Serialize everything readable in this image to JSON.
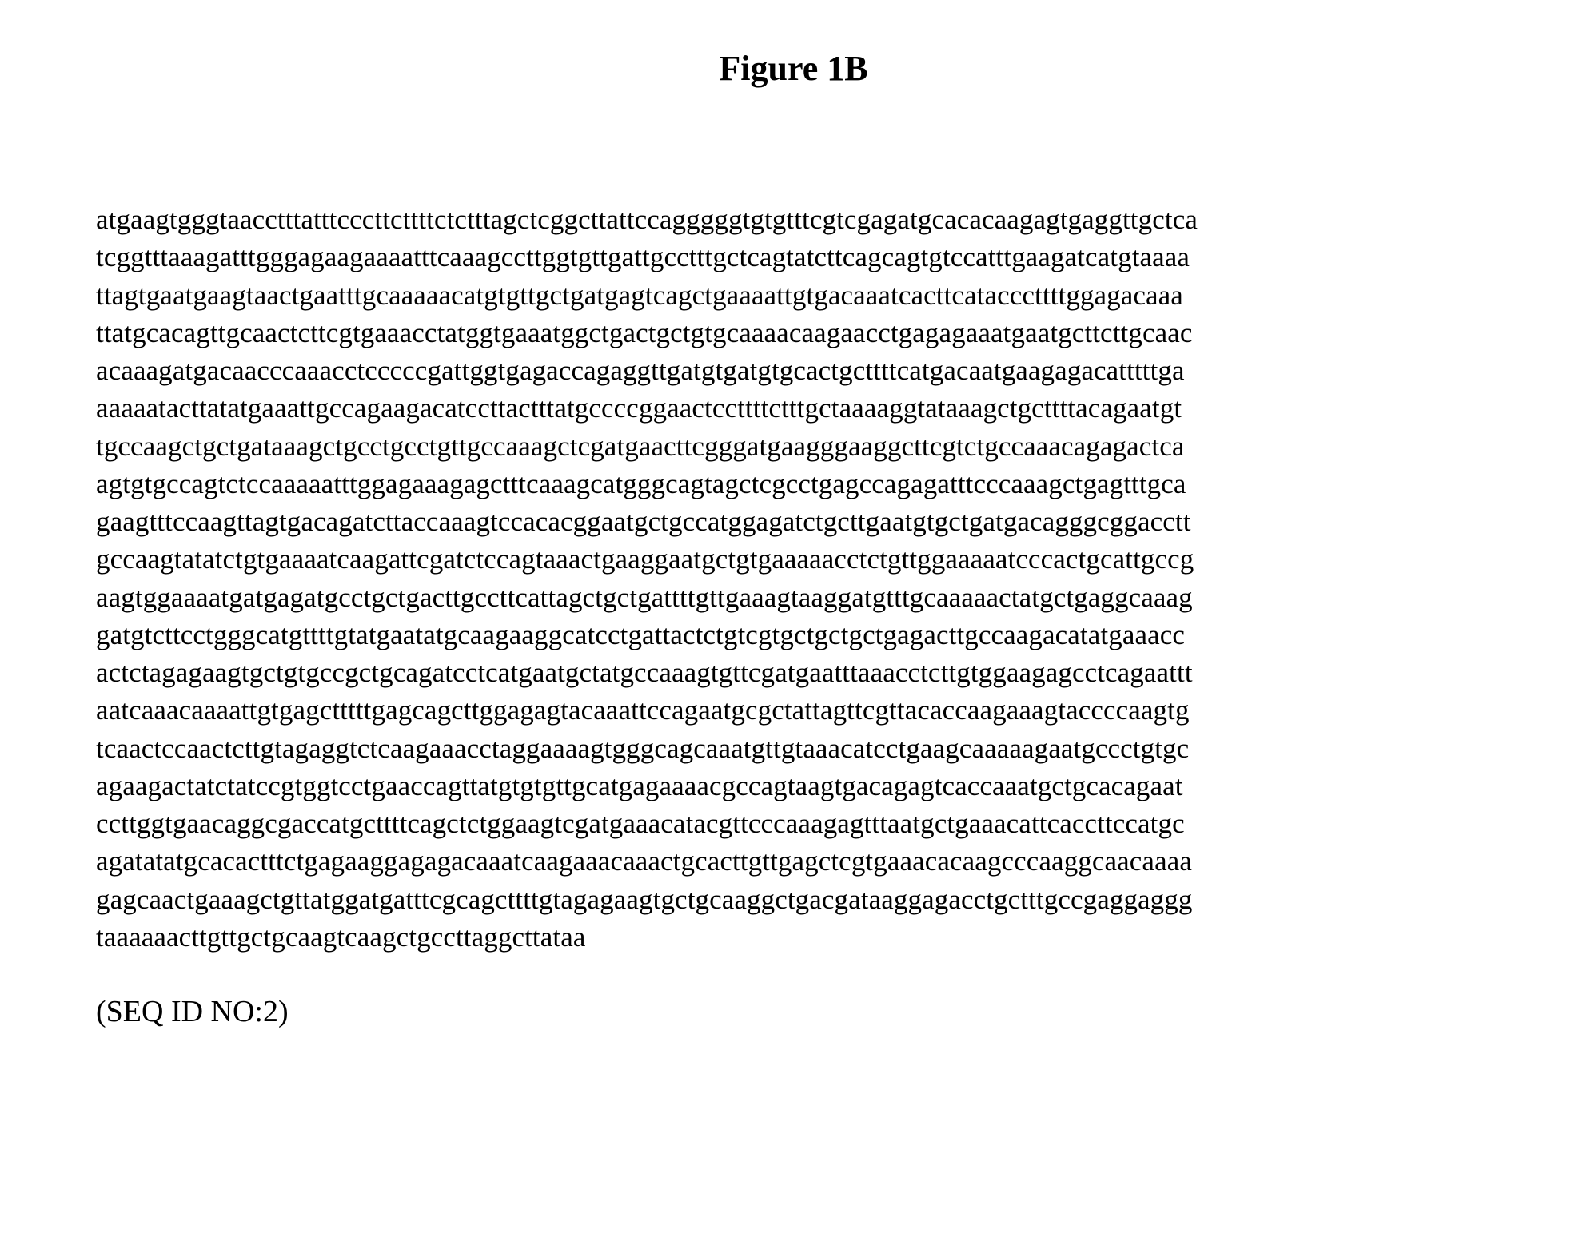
{
  "figure": {
    "title": "Figure 1B",
    "title_fontsize": 44,
    "title_fontweight": "bold",
    "sequence_fontsize": 35,
    "seqid_fontsize": 38,
    "background_color": "#ffffff",
    "text_color": "#000000",
    "font_family": "Times New Roman",
    "sequence_lines": [
      "atgaagtgggtaacctttatttcccttcttttctctttagctcggcttattccagggggtgtgtttcgtcgagatgcacacaagagtgaggttgctca",
      "tcggtttaaagatttgggagaagaaaatttcaaagccttggtgttgattgcctttgctcagtatcttcagcagtgtccatttgaagatcatgtaaaa",
      "ttagtgaatgaagtaactgaatttgcaaaaacatgtgttgctgatgagtcagctgaaaattgtgacaaatcacttcatacccttttggagacaaa",
      "ttatgcacagttgcaactcttcgtgaaacctatggtgaaatggctgactgctgtgcaaaacaagaacctgagagaaatgaatgcttcttgcaac",
      "acaaagatgacaacccaaacctcccccgattggtgagaccagaggttgatgtgatgtgcactgcttttcatgacaatgaagagacatttttga",
      "aaaaatacttatatgaaattgccagaagacatccttactttatgccccggaactccttttctttgctaaaaggtataaagctgcttttacagaatgt",
      "tgccaagctgctgataaagctgcctgcctgttgccaaagctcgatgaacttcgggatgaagggaaggcttcgtctgccaaacagagactca",
      "agtgtgccagtctccaaaaatttggagaaagagctttcaaagcatgggcagtagctcgcctgagccagagatttcccaaagctgagtttgca",
      "gaagtttccaagttagtgacagatcttaccaaagtccacacggaatgctgccatggagatctgcttgaatgtgctgatgacagggcggacctt",
      "gccaagtatatctgtgaaaatcaagattcgatctccagtaaactgaaggaatgctgtgaaaaacctctgttggaaaaatcccactgcattgccg",
      "aagtggaaaatgatgagatgcctgctgacttgccttcattagctgctgattttgttgaaagtaaggatgtttgcaaaaactatgctgaggcaaag",
      "gatgtcttcctgggcatgttttgtatgaatatgcaagaaggcatcctgattactctgtcgtgctgctgctgagacttgccaagacatatgaaacc",
      "actctagagaagtgctgtgccgctgcagatcctcatgaatgctatgccaaagtgttcgatgaatttaaacctcttgtggaagagcctcagaattt",
      "aatcaaacaaaattgtgagctttttgagcagcttggagagtacaaattccagaatgcgctattagttcgttacaccaagaaagtaccccaagtg",
      "tcaactccaactcttgtagaggtctcaagaaacctaggaaaagtgggcagcaaatgttgtaaacatcctgaagcaaaaagaatgccctgtgc",
      "agaagactatctatccgtggtcctgaaccagttatgtgtgttgcatgagaaaacgccagtaagtgacagagtcaccaaatgctgcacagaat",
      "ccttggtgaacaggcgaccatgcttttcagctctggaagtcgatgaaacatacgttcccaaagagtttaatgctgaaacattcaccttccatgc",
      "agatatatgcacactttctgagaaggagagacaaatcaagaaacaaactgcacttgttgagctcgtgaaacacaagcccaaggcaacaaaa",
      "gagcaactgaaagctgttatggatgatttcgcagcttttgtagagaagtgctgcaaggctgacgataaggagacctgctttgccgaggaggg",
      "taaaaaacttgttgctgcaagtcaagctgccttaggcttataa"
    ],
    "seq_id_label": "(SEQ ID NO:2)"
  }
}
